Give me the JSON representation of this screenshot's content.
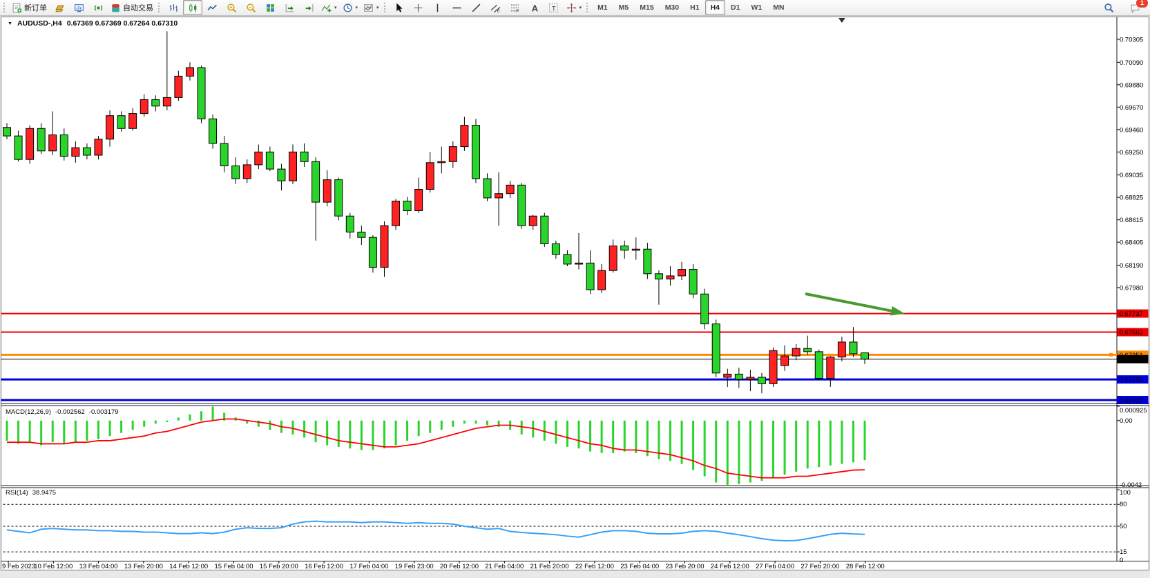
{
  "toolbar": {
    "left_buttons": [
      {
        "name": "new-order",
        "icon": "neworder",
        "label": "新订单"
      },
      {
        "name": "gold-chart",
        "icon": "gold"
      },
      {
        "name": "terminal-window",
        "icon": "terminal"
      },
      {
        "name": "signal",
        "icon": "signal"
      },
      {
        "name": "auto-trading",
        "icon": "autotrade",
        "label": "自动交易"
      }
    ],
    "chart_buttons": [
      {
        "name": "bar-chart",
        "icon": "bars"
      },
      {
        "name": "candlestick-chart",
        "icon": "candles",
        "active": true
      },
      {
        "name": "line-chart",
        "icon": "linechart"
      },
      {
        "name": "zoom-in",
        "icon": "zoomin"
      },
      {
        "name": "zoom-out",
        "icon": "zoomout"
      },
      {
        "name": "tile-windows",
        "icon": "tile"
      },
      {
        "name": "auto-scroll",
        "icon": "autoscroll"
      },
      {
        "name": "chart-shift",
        "icon": "chartshift"
      },
      {
        "name": "indicators",
        "icon": "indicators",
        "dropdown": true
      },
      {
        "name": "periods",
        "icon": "periods",
        "dropdown": true
      },
      {
        "name": "templates",
        "icon": "template",
        "dropdown": true
      }
    ],
    "draw_buttons": [
      {
        "name": "cursor",
        "icon": "cursor"
      },
      {
        "name": "crosshair",
        "icon": "crosshair"
      },
      {
        "name": "vertical-line",
        "icon": "vline"
      },
      {
        "name": "horizontal-line",
        "icon": "hline"
      },
      {
        "name": "trendline",
        "icon": "trend"
      },
      {
        "name": "equidistant-channel",
        "icon": "channel"
      },
      {
        "name": "fibonacci",
        "icon": "fibo"
      },
      {
        "name": "text",
        "icon": "textA"
      },
      {
        "name": "text-label",
        "icon": "textT"
      },
      {
        "name": "arrows",
        "icon": "arrows",
        "dropdown": true
      }
    ],
    "timeframes": [
      "M1",
      "M5",
      "M15",
      "M30",
      "H1",
      "H4",
      "D1",
      "W1",
      "MN"
    ],
    "active_timeframe": "H4",
    "notification_count": "1"
  },
  "chart": {
    "title": "AUDUSD-,H4",
    "quote": "0.67369 0.67369 0.67264 0.67310"
  },
  "chart_data": {
    "type": "candlestick",
    "symbol": "AUDUSD",
    "timeframe": "H4",
    "colors": {
      "up_candle": "#ff2222",
      "down_candle": "#2bd42b",
      "wick": "#000000",
      "macd_histogram": "#2bd42b",
      "macd_signal": "#ff0000",
      "rsi_line": "#3aa0f5",
      "arrow": "#4a9a32",
      "background": "#ffffff"
    },
    "y_axis": {
      "tick_labels": [
        "0.70305",
        "0.70090",
        "0.69880",
        "0.69670",
        "0.69460",
        "0.69250",
        "0.69035",
        "0.68825",
        "0.68615",
        "0.68405",
        "0.68190",
        "0.67980"
      ]
    },
    "x_axis": {
      "labels": [
        "9 Feb 2023",
        "10 Feb 12:00",
        "13 Feb 04:00",
        "13 Feb 20:00",
        "14 Feb 12:00",
        "15 Feb 04:00",
        "15 Feb 20:00",
        "16 Feb 12:00",
        "17 Feb 04:00",
        "19 Feb 23:00",
        "20 Feb 12:00",
        "21 Feb 04:00",
        "21 Feb 20:00",
        "22 Feb 12:00",
        "23 Feb 04:00",
        "23 Feb 20:00",
        "24 Feb 12:00",
        "27 Feb 04:00",
        "27 Feb 20:00",
        "28 Feb 12:00"
      ]
    },
    "candles": [
      [
        0.6948,
        0.6952,
        0.6937,
        0.694
      ],
      [
        0.694,
        0.6945,
        0.6916,
        0.6918
      ],
      [
        0.6918,
        0.695,
        0.6914,
        0.6947
      ],
      [
        0.6947,
        0.6952,
        0.6923,
        0.6926
      ],
      [
        0.6926,
        0.6963,
        0.6922,
        0.6941
      ],
      [
        0.6941,
        0.6947,
        0.6917,
        0.6921
      ],
      [
        0.6921,
        0.6935,
        0.6915,
        0.6929
      ],
      [
        0.6929,
        0.6933,
        0.6918,
        0.6922
      ],
      [
        0.6922,
        0.694,
        0.6918,
        0.6937
      ],
      [
        0.6937,
        0.6964,
        0.693,
        0.6959
      ],
      [
        0.6959,
        0.6963,
        0.6944,
        0.6947
      ],
      [
        0.6947,
        0.6966,
        0.6945,
        0.6961
      ],
      [
        0.6961,
        0.6979,
        0.6958,
        0.6974
      ],
      [
        0.6974,
        0.6978,
        0.6963,
        0.6968
      ],
      [
        0.6968,
        0.7038,
        0.6964,
        0.6976
      ],
      [
        0.6976,
        0.7001,
        0.6973,
        0.6996
      ],
      [
        0.6996,
        0.7009,
        0.6992,
        0.7004
      ],
      [
        0.7004,
        0.7006,
        0.6952,
        0.6956
      ],
      [
        0.6956,
        0.696,
        0.6928,
        0.6933
      ],
      [
        0.6933,
        0.694,
        0.6906,
        0.6912
      ],
      [
        0.6912,
        0.692,
        0.6895,
        0.69
      ],
      [
        0.69,
        0.6918,
        0.6896,
        0.6913
      ],
      [
        0.6913,
        0.6932,
        0.6909,
        0.6925
      ],
      [
        0.6925,
        0.693,
        0.6907,
        0.6909
      ],
      [
        0.6909,
        0.6914,
        0.6889,
        0.6898
      ],
      [
        0.6898,
        0.6932,
        0.6895,
        0.6925
      ],
      [
        0.6925,
        0.6933,
        0.6911,
        0.6916
      ],
      [
        0.6916,
        0.692,
        0.6842,
        0.6878
      ],
      [
        0.6878,
        0.6908,
        0.6874,
        0.6899
      ],
      [
        0.6899,
        0.6901,
        0.6861,
        0.6865
      ],
      [
        0.6865,
        0.6868,
        0.6844,
        0.685
      ],
      [
        0.685,
        0.6856,
        0.6838,
        0.6845
      ],
      [
        0.6845,
        0.6847,
        0.6812,
        0.6817
      ],
      [
        0.6817,
        0.686,
        0.6808,
        0.6856
      ],
      [
        0.6856,
        0.6881,
        0.6852,
        0.6879
      ],
      [
        0.6879,
        0.6883,
        0.6866,
        0.687
      ],
      [
        0.687,
        0.6901,
        0.6868,
        0.689
      ],
      [
        0.689,
        0.6925,
        0.6887,
        0.6915
      ],
      [
        0.6915,
        0.693,
        0.6905,
        0.6916
      ],
      [
        0.6916,
        0.6935,
        0.691,
        0.693
      ],
      [
        0.693,
        0.6958,
        0.6926,
        0.695
      ],
      [
        0.695,
        0.6956,
        0.6896,
        0.69
      ],
      [
        0.69,
        0.6905,
        0.6879,
        0.6882
      ],
      [
        0.6882,
        0.6906,
        0.6856,
        0.6886
      ],
      [
        0.6886,
        0.6898,
        0.6882,
        0.6894
      ],
      [
        0.6894,
        0.6896,
        0.6853,
        0.6856
      ],
      [
        0.6856,
        0.6866,
        0.6852,
        0.6865
      ],
      [
        0.6865,
        0.6868,
        0.6836,
        0.6839
      ],
      [
        0.6839,
        0.6842,
        0.6825,
        0.6829
      ],
      [
        0.6829,
        0.6833,
        0.6818,
        0.682
      ],
      [
        0.682,
        0.6849,
        0.6815,
        0.6821
      ],
      [
        0.6821,
        0.6833,
        0.6792,
        0.6796
      ],
      [
        0.6796,
        0.682,
        0.6793,
        0.6814
      ],
      [
        0.6814,
        0.6843,
        0.6812,
        0.6837
      ],
      [
        0.6837,
        0.6842,
        0.6825,
        0.6833
      ],
      [
        0.6833,
        0.6845,
        0.6824,
        0.6834
      ],
      [
        0.6834,
        0.684,
        0.6806,
        0.6811
      ],
      [
        0.6811,
        0.6814,
        0.6782,
        0.6806
      ],
      [
        0.6806,
        0.6818,
        0.68,
        0.6809
      ],
      [
        0.6809,
        0.6822,
        0.6805,
        0.6815
      ],
      [
        0.6815,
        0.682,
        0.6788,
        0.6792
      ],
      [
        0.6792,
        0.6797,
        0.6759,
        0.6764
      ],
      [
        0.6764,
        0.6768,
        0.6714,
        0.6718
      ],
      [
        0.6714,
        0.6722,
        0.6705,
        0.6717
      ],
      [
        0.6717,
        0.6723,
        0.6704,
        0.6712
      ],
      [
        0.6712,
        0.6721,
        0.6701,
        0.6714
      ],
      [
        0.6714,
        0.6718,
        0.6699,
        0.6708
      ],
      [
        0.6708,
        0.6742,
        0.6705,
        0.6739
      ],
      [
        0.6725,
        0.6744,
        0.672,
        0.6734
      ],
      [
        0.6734,
        0.6745,
        0.673,
        0.6741
      ],
      [
        0.6741,
        0.6753,
        0.6735,
        0.6738
      ],
      [
        0.6738,
        0.674,
        0.6711,
        0.6713
      ],
      [
        0.6713,
        0.6734,
        0.6705,
        0.6733
      ],
      [
        0.6733,
        0.6752,
        0.6729,
        0.6747
      ],
      [
        0.6747,
        0.6761,
        0.6733,
        0.6736
      ],
      [
        0.67369,
        0.67369,
        0.67264,
        0.6731
      ]
    ],
    "hlines": [
      {
        "label": "0.67737",
        "price": 0.67737,
        "color": "#ee0000",
        "width": 2
      },
      {
        "label": "0.67563",
        "price": 0.67563,
        "color": "#ee0000",
        "width": 2
      },
      {
        "label": "0.67351",
        "price": 0.67351,
        "color": "#ff8c00",
        "width": 3,
        "handle": true
      },
      {
        "label": "0.67310",
        "price": 0.6731,
        "color": "#000000",
        "width": 1,
        "bid": true
      },
      {
        "label": "0.67120",
        "price": 0.6712,
        "color": "#0000dd",
        "width": 3
      },
      {
        "label": "0.66927",
        "price": 0.66927,
        "color": "#0000dd",
        "width": 3
      }
    ],
    "arrow": {
      "from_bar": 69.9,
      "from_price": 0.6792,
      "to_bar": 78.5,
      "to_price": 0.67737,
      "color": "#4a9a32"
    },
    "shift_marker_bar": 73,
    "macd": {
      "name": "MACD(12,26,9)",
      "value": "-0.002562",
      "signal_value": "-0.003179",
      "axis": [
        {
          "label": "0.000925",
          "v": 0.000925
        },
        {
          "label": "0.00",
          "v": 0
        },
        {
          "label": "-0.0042",
          "v": -0.0042
        }
      ],
      "max": 0.000925,
      "min": -0.0042,
      "histogram": [
        -0.0013,
        -0.0015,
        -0.0014,
        -0.0016,
        -0.0014,
        -0.0015,
        -0.0014,
        -0.0013,
        -0.0012,
        -0.001,
        -0.0008,
        -0.0006,
        -0.0004,
        -0.0002,
        -0.0001,
        0.0002,
        0.0004,
        0.0006,
        0.0009,
        0.0005,
        0.0002,
        -0.0002,
        -0.0004,
        -0.0006,
        -0.0008,
        -0.0009,
        -0.0011,
        -0.0014,
        -0.0016,
        -0.0017,
        -0.0018,
        -0.0019,
        -0.0019,
        -0.0018,
        -0.0016,
        -0.0013,
        -0.001,
        -0.0008,
        -0.0006,
        -0.0004,
        -0.0002,
        -0.0002,
        -0.0003,
        -0.0004,
        -0.0006,
        -0.0009,
        -0.0011,
        -0.0013,
        -0.0015,
        -0.0017,
        -0.0018,
        -0.002,
        -0.0021,
        -0.0021,
        -0.002,
        -0.0021,
        -0.0023,
        -0.0025,
        -0.0026,
        -0.0028,
        -0.0032,
        -0.0036,
        -0.004,
        -0.0042,
        -0.0041,
        -0.004,
        -0.0039,
        -0.0037,
        -0.0035,
        -0.0033,
        -0.0031,
        -0.003,
        -0.0029,
        -0.0028,
        -0.0027,
        -0.002562
      ],
      "signal": [
        -0.0014,
        -0.0014,
        -0.0014,
        -0.0015,
        -0.0015,
        -0.0015,
        -0.0014,
        -0.0014,
        -0.0013,
        -0.0013,
        -0.0012,
        -0.0011,
        -0.001,
        -0.0008,
        -0.0007,
        -0.0005,
        -0.0003,
        -0.0001,
        0.0,
        0.0001,
        0.0001,
        0.0,
        -0.0001,
        -0.0002,
        -0.0004,
        -0.0005,
        -0.0007,
        -0.0009,
        -0.0011,
        -0.0013,
        -0.0014,
        -0.0015,
        -0.0016,
        -0.0017,
        -0.0017,
        -0.0016,
        -0.0015,
        -0.0013,
        -0.0011,
        -0.0009,
        -0.0007,
        -0.0005,
        -0.0004,
        -0.0003,
        -0.0003,
        -0.0004,
        -0.0005,
        -0.0007,
        -0.0009,
        -0.0011,
        -0.0013,
        -0.0015,
        -0.0016,
        -0.0018,
        -0.0019,
        -0.0019,
        -0.002,
        -0.0021,
        -0.0022,
        -0.0024,
        -0.0026,
        -0.0029,
        -0.0031,
        -0.0034,
        -0.0035,
        -0.0036,
        -0.0037,
        -0.0037,
        -0.0037,
        -0.0036,
        -0.0036,
        -0.0035,
        -0.0034,
        -0.0033,
        -0.0032,
        -0.003179
      ]
    },
    "rsi": {
      "name": "RSI(14)",
      "value": "38.9475",
      "axis": [
        {
          "label": "100",
          "r": 100
        },
        {
          "label": "80",
          "r": 80
        },
        {
          "label": "50",
          "r": 50
        },
        {
          "label": "15",
          "r": 15
        },
        {
          "label": "0",
          "r": 0
        }
      ],
      "dashed_levels": [
        80,
        50,
        15
      ],
      "values": [
        45,
        43,
        41,
        46,
        47,
        46,
        45,
        45,
        44,
        44,
        43,
        43,
        42,
        42,
        41,
        40,
        40,
        41,
        40,
        42,
        46,
        48,
        47,
        47,
        48,
        53,
        56,
        57,
        56,
        56,
        56,
        55,
        56,
        56,
        55,
        54,
        55,
        54,
        54,
        53,
        50,
        48,
        46,
        47,
        43,
        41.5,
        40.5,
        39.5,
        38.5,
        36.5,
        35.2,
        38.5,
        42,
        44,
        44,
        43,
        40.5,
        39.6,
        39.6,
        40.6,
        43,
        44,
        43,
        40.6,
        38.4,
        35.8,
        33,
        31,
        30.2,
        30.5,
        33,
        36,
        39,
        40.5,
        39.5,
        38.9475
      ]
    }
  }
}
